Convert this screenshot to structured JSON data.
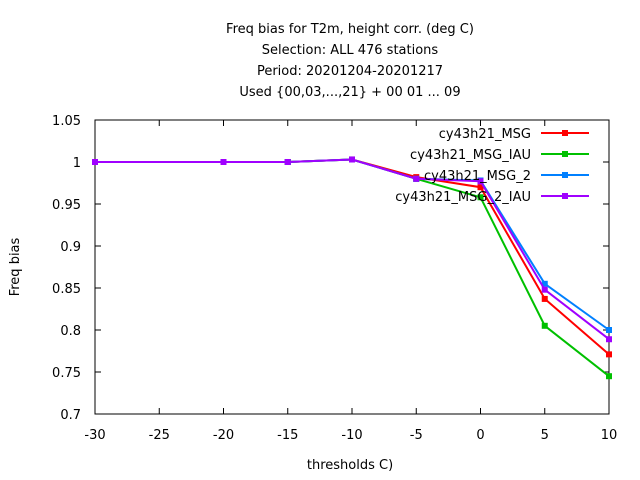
{
  "chart_data": {
    "type": "line",
    "title_lines": [
      "Freq bias  for T2m, height corr. (deg C)",
      "Selection: ALL    476 stations",
      "Period: 20201204-20201217",
      "Used {00,03,...,21} + 00 01 ... 09"
    ],
    "xlabel": "thresholds C)",
    "ylabel": "Freq bias",
    "xlim": [
      -30,
      10
    ],
    "ylim": [
      0.7,
      1.05
    ],
    "xticks": [
      -30,
      -25,
      -20,
      -15,
      -10,
      -5,
      0,
      5,
      10
    ],
    "yticks": [
      0.7,
      0.75,
      0.8,
      0.85,
      0.9,
      0.95,
      1.0,
      1.05
    ],
    "xtick_labels": [
      "-30",
      "-25",
      "-20",
      "-15",
      "-10",
      "-5",
      "0",
      "5",
      "10"
    ],
    "ytick_labels": [
      "0.7",
      "0.75",
      "0.8",
      "0.85",
      "0.9",
      "0.95",
      "1",
      "1.05"
    ],
    "grid": false,
    "legend_position": "top-right",
    "x": [
      -30,
      -20,
      -15,
      -10,
      -5,
      0,
      5,
      10
    ],
    "series": [
      {
        "name": "cy43h21_MSG",
        "color": "#ff0000",
        "values": [
          1.0,
          1.0,
          1.0,
          1.003,
          0.982,
          0.97,
          0.837,
          0.771
        ]
      },
      {
        "name": "cy43h21_MSG_IAU",
        "color": "#00c000",
        "values": [
          1.0,
          1.0,
          1.0,
          1.003,
          0.98,
          0.958,
          0.805,
          0.745
        ]
      },
      {
        "name": "cy43h21_MSG_2",
        "color": "#0080ff",
        "values": [
          1.0,
          1.0,
          1.0,
          1.003,
          0.98,
          0.978,
          0.855,
          0.8
        ]
      },
      {
        "name": "cy43h21_MSG_2_IAU",
        "color": "#a000ff",
        "values": [
          1.0,
          1.0,
          1.0,
          1.003,
          0.98,
          0.977,
          0.848,
          0.789
        ]
      }
    ]
  }
}
